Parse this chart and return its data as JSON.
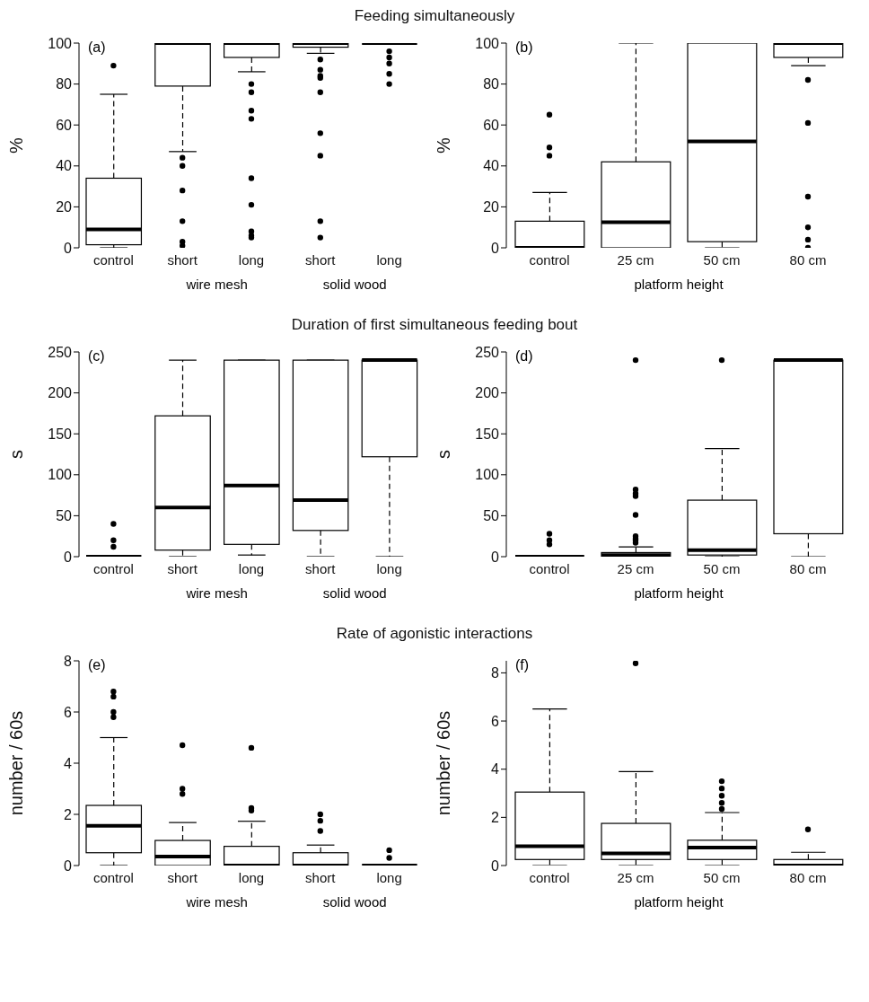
{
  "chart_data": [
    {
      "type": "box",
      "title": "Feeding simultaneously",
      "categories": [
        "control",
        "short",
        "long",
        "short",
        "long"
      ],
      "ylabel": "%",
      "ylim": [
        0,
        100
      ],
      "yticks": [
        0,
        20,
        40,
        60,
        80,
        100
      ],
      "annotations": [
        "(a)",
        "wire mesh",
        "solid wood"
      ],
      "boxes": [
        {
          "low": 0,
          "q1": 1.5,
          "median": 9,
          "q3": 34,
          "high": 75,
          "outliers": [
            89
          ]
        },
        {
          "low": 47,
          "q1": 79,
          "median": 100,
          "q3": 100,
          "high": 100,
          "outliers": [
            44,
            40,
            28,
            13,
            3,
            1
          ]
        },
        {
          "low": 86,
          "q1": 93,
          "median": 100,
          "q3": 100,
          "high": 100,
          "outliers": [
            80,
            76,
            67,
            63,
            34,
            21,
            8,
            6,
            5
          ]
        },
        {
          "low": 95,
          "q1": 98,
          "median": 100,
          "q3": 100,
          "high": 100,
          "outliers": [
            92,
            87,
            84,
            83,
            76,
            56,
            45,
            13,
            5
          ]
        },
        {
          "low": 100,
          "q1": 100,
          "median": 100,
          "q3": 100,
          "high": 100,
          "outliers": [
            96,
            93,
            90,
            85,
            80
          ]
        }
      ]
    },
    {
      "type": "box",
      "categories": [
        "control",
        "25 cm",
        "50 cm",
        "80 cm"
      ],
      "xlabel": "platform height",
      "ylabel": "%",
      "ylim": [
        0,
        100
      ],
      "yticks": [
        0,
        20,
        40,
        60,
        80,
        100
      ],
      "annotations": [
        "(b)"
      ],
      "boxes": [
        {
          "low": 0,
          "q1": 0,
          "median": 0,
          "q3": 13,
          "high": 27,
          "outliers": [
            65,
            49,
            45
          ]
        },
        {
          "low": 0,
          "q1": 0,
          "median": 12.5,
          "q3": 42,
          "high": 100
        },
        {
          "low": 0,
          "q1": 3,
          "median": 52,
          "q3": 100,
          "high": 100
        },
        {
          "low": 89,
          "q1": 93,
          "median": 100,
          "q3": 100,
          "high": 100,
          "outliers": [
            82,
            61,
            25,
            10,
            4,
            0
          ]
        }
      ]
    },
    {
      "type": "box",
      "title": "Duration of first simultaneous feeding bout",
      "categories": [
        "control",
        "short",
        "long",
        "short",
        "long"
      ],
      "ylabel": "s",
      "ylim": [
        0,
        250
      ],
      "yticks": [
        0,
        50,
        100,
        150,
        200,
        250
      ],
      "annotations": [
        "(c)",
        "wire mesh",
        "solid wood"
      ],
      "boxes": [
        {
          "low": 0,
          "q1": 0,
          "median": 0,
          "q3": 0,
          "high": 0,
          "outliers": [
            40,
            20,
            12
          ]
        },
        {
          "low": 0,
          "q1": 8,
          "median": 60,
          "q3": 172,
          "high": 240
        },
        {
          "low": 2,
          "q1": 15,
          "median": 87,
          "q3": 240,
          "high": 240
        },
        {
          "low": 0,
          "q1": 32,
          "median": 69,
          "q3": 240,
          "high": 240
        },
        {
          "low": 0,
          "q1": 122,
          "median": 240,
          "q3": 240,
          "high": 240
        }
      ]
    },
    {
      "type": "box",
      "categories": [
        "control",
        "25 cm",
        "50 cm",
        "80 cm"
      ],
      "xlabel": "platform height",
      "ylabel": "s",
      "ylim": [
        0,
        250
      ],
      "yticks": [
        0,
        50,
        100,
        150,
        200,
        250
      ],
      "annotations": [
        "(d)"
      ],
      "boxes": [
        {
          "low": 0,
          "q1": 0,
          "median": 0,
          "q3": 0,
          "high": 0,
          "outliers": [
            28,
            20,
            15
          ]
        },
        {
          "low": 0,
          "q1": 0,
          "median": 2,
          "q3": 5,
          "high": 12,
          "outliers": [
            240,
            82,
            77,
            74,
            51,
            25,
            22,
            20,
            17
          ]
        },
        {
          "low": 0,
          "q1": 2,
          "median": 8,
          "q3": 69,
          "high": 132,
          "outliers": [
            240
          ]
        },
        {
          "low": 0,
          "q1": 28,
          "median": 240,
          "q3": 240,
          "high": 240
        }
      ]
    },
    {
      "type": "box",
      "title": "Rate of agonistic interactions",
      "categories": [
        "control",
        "short",
        "long",
        "short",
        "long"
      ],
      "ylabel": "number / 60s",
      "ylim": [
        0,
        8
      ],
      "yticks": [
        0,
        2,
        4,
        6,
        8
      ],
      "annotations": [
        "(e)",
        "wire mesh",
        "solid wood"
      ],
      "boxes": [
        {
          "low": 0,
          "q1": 0.5,
          "median": 1.55,
          "q3": 2.35,
          "high": 5,
          "outliers": [
            6.8,
            6.6,
            6,
            5.8
          ]
        },
        {
          "low": 0,
          "q1": 0,
          "median": 0.35,
          "q3": 0.98,
          "high": 1.68,
          "outliers": [
            4.7,
            3,
            2.8
          ]
        },
        {
          "low": 0,
          "q1": 0,
          "median": 0,
          "q3": 0.75,
          "high": 1.73,
          "outliers": [
            4.6,
            2.25,
            2.15
          ]
        },
        {
          "low": 0,
          "q1": 0,
          "median": 0,
          "q3": 0.5,
          "high": 0.8,
          "outliers": [
            2,
            1.75,
            1.35
          ]
        },
        {
          "low": 0,
          "q1": 0,
          "median": 0,
          "q3": 0,
          "high": 0,
          "outliers": [
            0.6,
            0.3
          ]
        }
      ]
    },
    {
      "type": "box",
      "categories": [
        "control",
        "25 cm",
        "50 cm",
        "80 cm"
      ],
      "xlabel": "platform height",
      "ylabel": "number / 60s",
      "ylim": [
        0,
        8.5
      ],
      "yticks": [
        0,
        2,
        4,
        6,
        8
      ],
      "annotations": [
        "(f)"
      ],
      "boxes": [
        {
          "low": 0,
          "q1": 0.25,
          "median": 0.8,
          "q3": 3.05,
          "high": 6.5
        },
        {
          "low": 0,
          "q1": 0.25,
          "median": 0.5,
          "q3": 1.75,
          "high": 3.9,
          "outliers": [
            8.4
          ]
        },
        {
          "low": 0,
          "q1": 0.25,
          "median": 0.75,
          "q3": 1.05,
          "high": 2.2,
          "outliers": [
            3.5,
            3.2,
            2.9,
            2.6,
            2.35
          ]
        },
        {
          "low": 0,
          "q1": 0,
          "median": 0,
          "q3": 0.25,
          "high": 0.55,
          "outliers": [
            1.5
          ]
        }
      ]
    }
  ]
}
